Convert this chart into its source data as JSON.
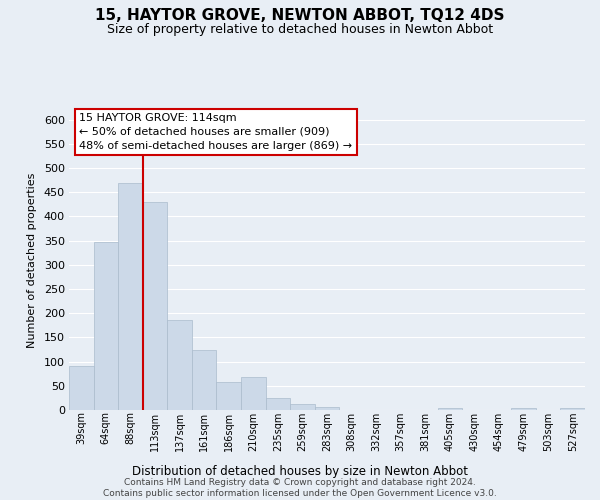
{
  "title": "15, HAYTOR GROVE, NEWTON ABBOT, TQ12 4DS",
  "subtitle": "Size of property relative to detached houses in Newton Abbot",
  "xlabel": "Distribution of detached houses by size in Newton Abbot",
  "ylabel": "Number of detached properties",
  "bar_labels": [
    "39sqm",
    "64sqm",
    "88sqm",
    "113sqm",
    "137sqm",
    "161sqm",
    "186sqm",
    "210sqm",
    "235sqm",
    "259sqm",
    "283sqm",
    "308sqm",
    "332sqm",
    "357sqm",
    "381sqm",
    "405sqm",
    "430sqm",
    "454sqm",
    "479sqm",
    "503sqm",
    "527sqm"
  ],
  "bar_values": [
    90,
    348,
    470,
    430,
    185,
    124,
    57,
    68,
    25,
    13,
    6,
    0,
    0,
    0,
    0,
    4,
    0,
    0,
    4,
    0,
    4
  ],
  "bar_color": "#ccd9e8",
  "bar_edge_color": "#aabbcc",
  "ylim": [
    0,
    620
  ],
  "yticks": [
    0,
    50,
    100,
    150,
    200,
    250,
    300,
    350,
    400,
    450,
    500,
    550,
    600
  ],
  "vline_index": 3,
  "vline_color": "#cc0000",
  "annotation_line1": "15 HAYTOR GROVE: 114sqm",
  "annotation_line2": "← 50% of detached houses are smaller (909)",
  "annotation_line3": "48% of semi-detached houses are larger (869) →",
  "annotation_box_color": "#ffffff",
  "annotation_box_edge": "#cc0000",
  "footer_line1": "Contains HM Land Registry data © Crown copyright and database right 2024.",
  "footer_line2": "Contains public sector information licensed under the Open Government Licence v3.0.",
  "background_color": "#e8eef5",
  "grid_color": "#ffffff",
  "title_fontsize": 11,
  "subtitle_fontsize": 9,
  "footer_fontsize": 6.5
}
